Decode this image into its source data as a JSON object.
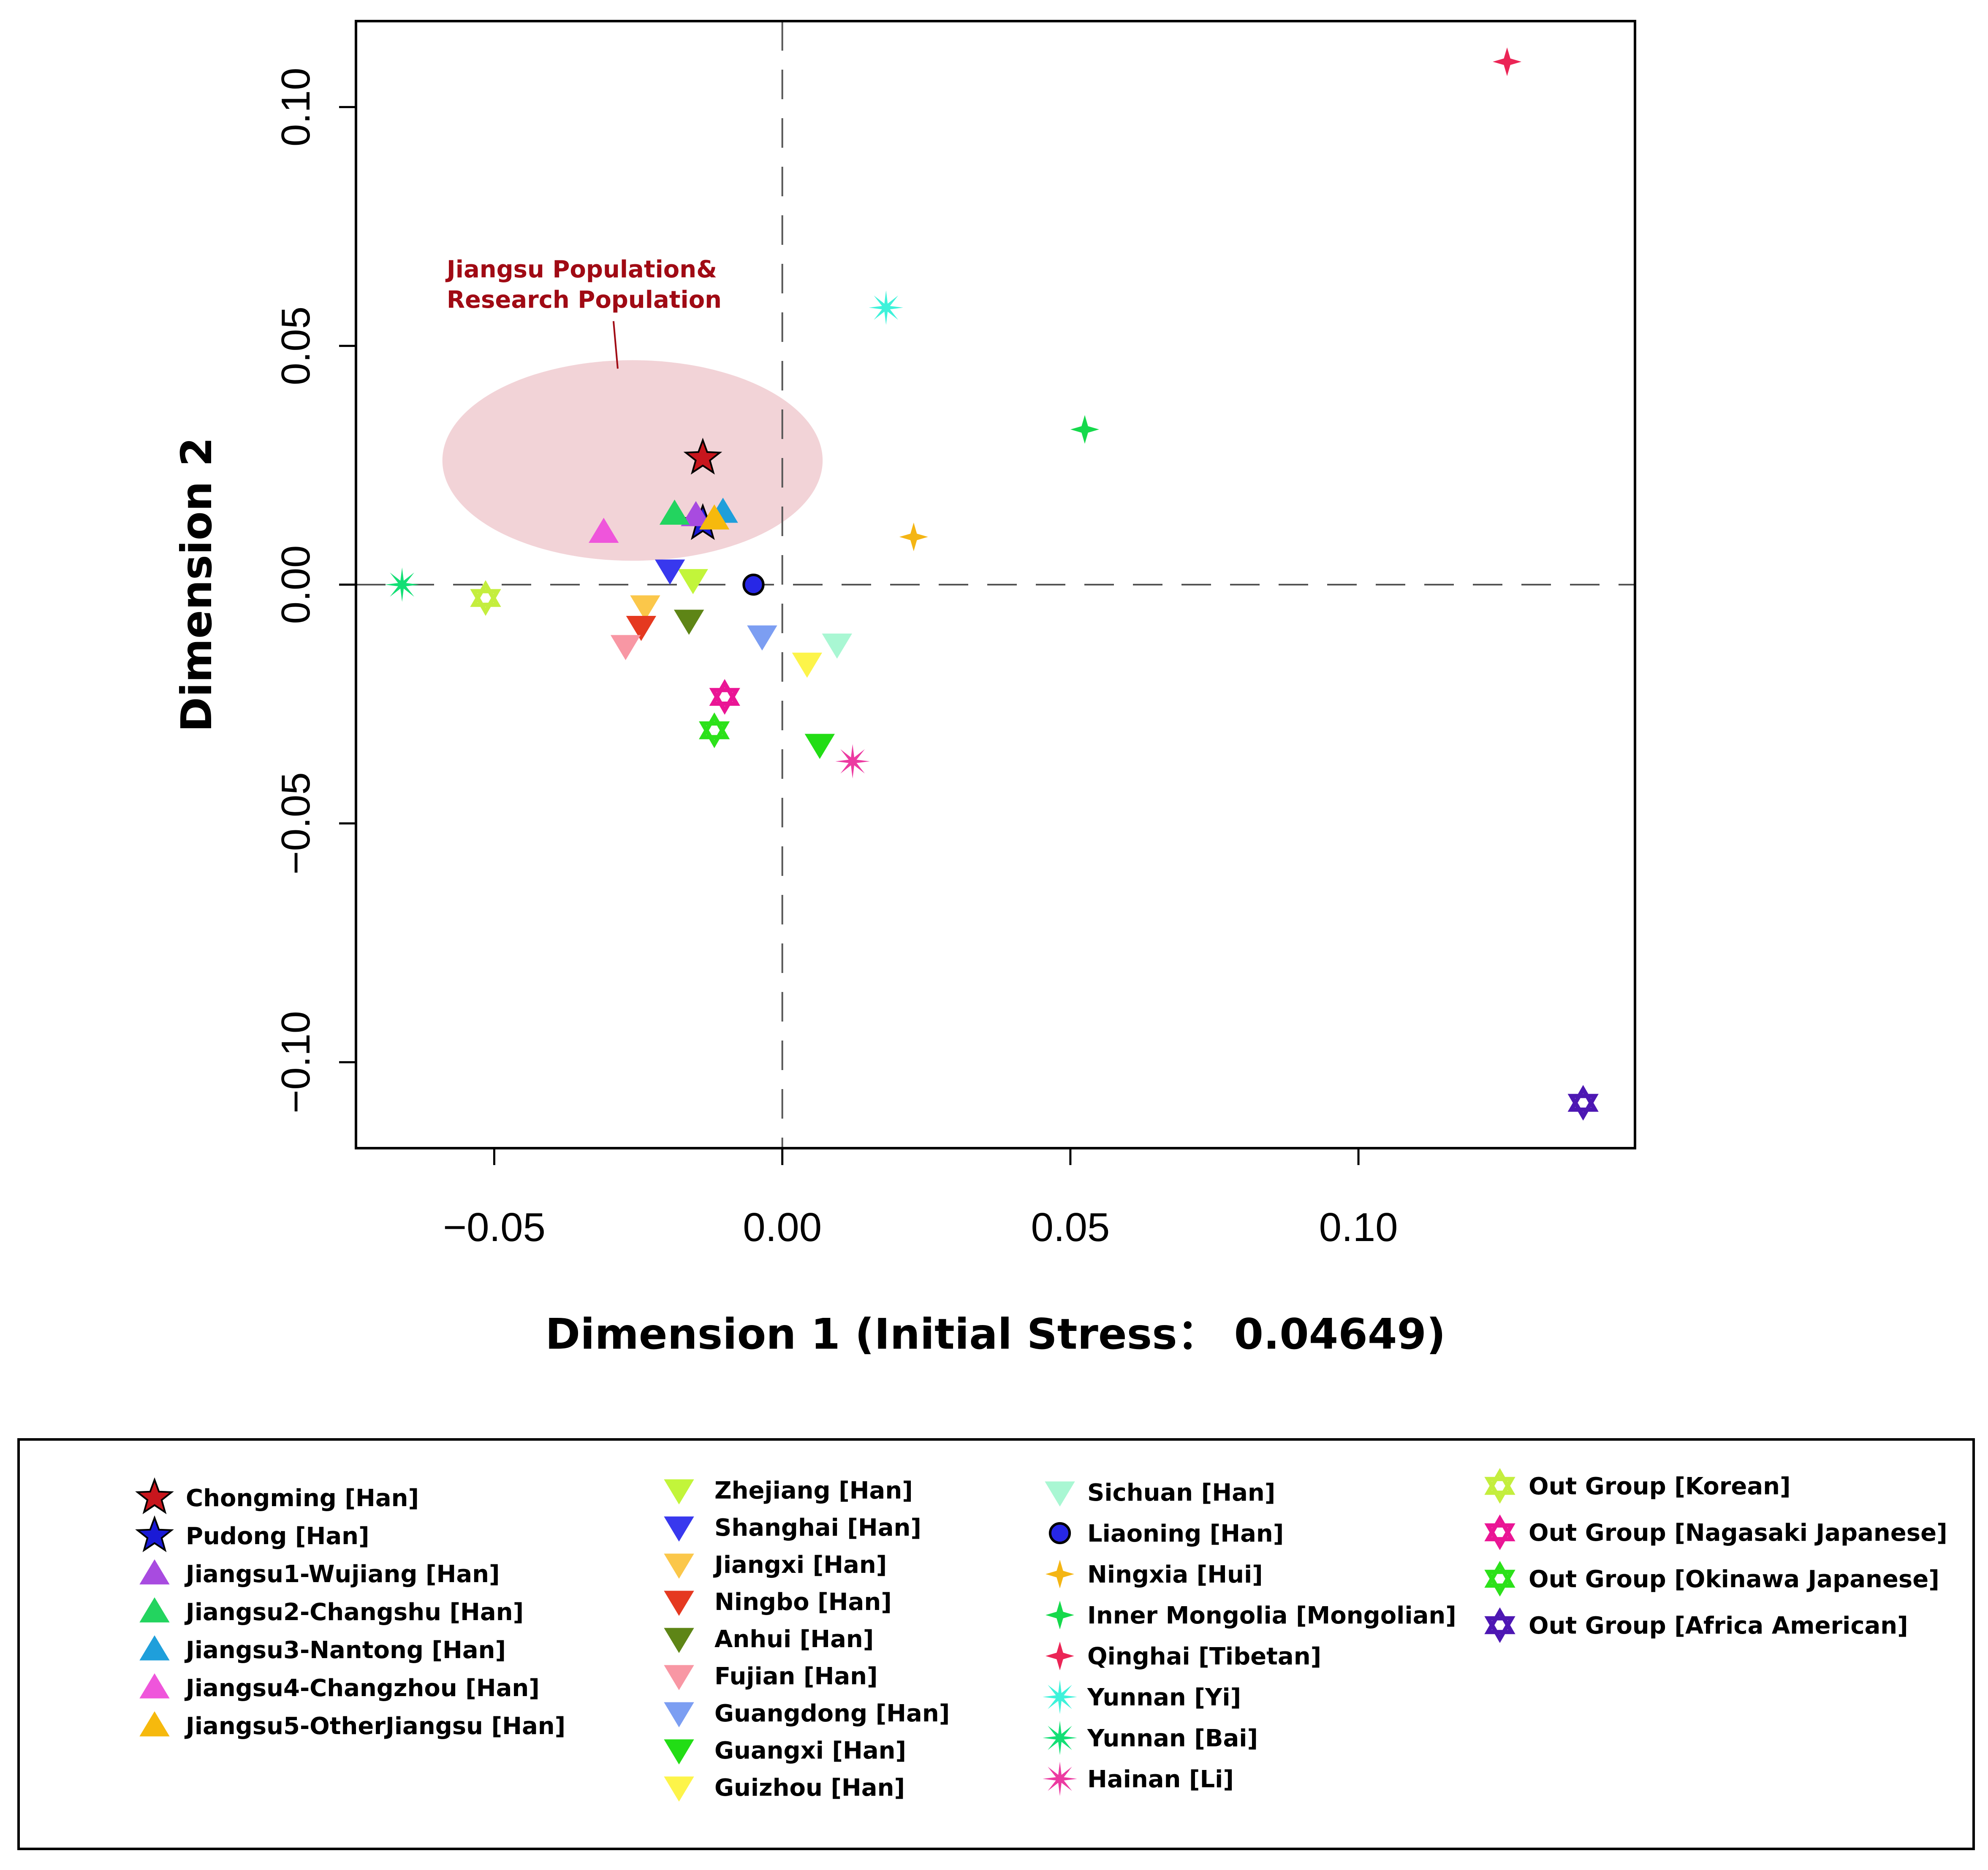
{
  "chart_data": {
    "type": "scatter",
    "title": "",
    "xlabel": "Dimension 1 (Initial Stress： 0.04649)",
    "ylabel": "Dimension 2",
    "xlim": [
      -0.074,
      0.148
    ],
    "ylim": [
      -0.118,
      0.118
    ],
    "x_ticks": [
      -0.05,
      0.0,
      0.05,
      0.1
    ],
    "x_tick_labels": [
      "−0.05",
      "0.00",
      "0.05",
      "0.10"
    ],
    "y_ticks": [
      -0.1,
      -0.05,
      0.0,
      0.05,
      0.1
    ],
    "y_tick_labels": [
      "−0.10",
      "−0.05",
      "0.00",
      "0.05",
      "0.10"
    ],
    "reference_lines": [
      {
        "axis": "x",
        "value": 0
      },
      {
        "axis": "y",
        "value": 0
      }
    ],
    "annotation": {
      "lines": [
        "Jiangsu Population&",
        "Research Population"
      ],
      "ellipse_center": [
        -0.026,
        0.026
      ],
      "ellipse_radius": [
        0.033,
        0.021
      ],
      "color": "#f2d3d7"
    },
    "series": [
      {
        "name": "Chongming [Han]",
        "x": -0.0138,
        "y": 0.0265,
        "marker": "star",
        "color": "#c8161d",
        "legend_col": 0
      },
      {
        "name": "Pudong [Han]",
        "x": -0.0138,
        "y": 0.0128,
        "marker": "star",
        "color": "#1a1ad6",
        "legend_col": 0
      },
      {
        "name": "Jiangsu1-Wujiang [Han]",
        "x": -0.015,
        "y": 0.0145,
        "marker": "triangle-up",
        "color": "#a84be0",
        "legend_col": 0
      },
      {
        "name": "Jiangsu2-Changshu [Han]",
        "x": -0.0187,
        "y": 0.0148,
        "marker": "triangle-up",
        "color": "#23d45f",
        "legend_col": 0
      },
      {
        "name": "Jiangsu3-Nantong [Han]",
        "x": -0.0103,
        "y": 0.0152,
        "marker": "triangle-up",
        "color": "#1f9fdb",
        "legend_col": 0
      },
      {
        "name": "Jiangsu4-Changzhou [Han]",
        "x": -0.031,
        "y": 0.011,
        "marker": "triangle-up",
        "color": "#ef55db",
        "legend_col": 0
      },
      {
        "name": "Jiangsu5-OtherJiangsu [Han]",
        "x": -0.0118,
        "y": 0.0138,
        "marker": "triangle-up",
        "color": "#f6b90d",
        "legend_col": 0
      },
      {
        "name": "Zhejiang [Han]",
        "x": -0.0155,
        "y": 0.001,
        "marker": "triangle-down",
        "color": "#c2f53a",
        "legend_col": 1
      },
      {
        "name": "Shanghai [Han]",
        "x": -0.0195,
        "y": 0.003,
        "marker": "triangle-down",
        "color": "#3838ee",
        "legend_col": 1
      },
      {
        "name": "Jiangxi [Han]",
        "x": -0.0238,
        "y": -0.0045,
        "marker": "triangle-down",
        "color": "#fbc74a",
        "legend_col": 1
      },
      {
        "name": "Ningbo [Han]",
        "x": -0.0245,
        "y": -0.0088,
        "marker": "triangle-down",
        "color": "#e53920",
        "legend_col": 1
      },
      {
        "name": "Anhui [Han]",
        "x": -0.0162,
        "y": -0.0075,
        "marker": "triangle-down",
        "color": "#5e8516",
        "legend_col": 1
      },
      {
        "name": "Fujian [Han]",
        "x": -0.0272,
        "y": -0.0128,
        "marker": "triangle-down",
        "color": "#f897a4",
        "legend_col": 1
      },
      {
        "name": "Guangdong [Han]",
        "x": -0.0035,
        "y": -0.0108,
        "marker": "triangle-down",
        "color": "#7c9ef2",
        "legend_col": 1
      },
      {
        "name": "Guangxi [Han]",
        "x": 0.0065,
        "y": -0.0335,
        "marker": "triangle-down",
        "color": "#22dd15",
        "legend_col": 1
      },
      {
        "name": "Guizhou [Han]",
        "x": 0.0043,
        "y": -0.0165,
        "marker": "triangle-down",
        "color": "#fdf44a",
        "legend_col": 1
      },
      {
        "name": "Sichuan [Han]",
        "x": 0.0095,
        "y": -0.0125,
        "marker": "triangle-down",
        "color": "#a9f7d3",
        "legend_col": 2
      },
      {
        "name": "Liaoning [Han]",
        "x": -0.005,
        "y": 0.0,
        "marker": "circle",
        "color": "#2727e6",
        "legend_col": 2
      },
      {
        "name": "Ningxia [Hui]",
        "x": 0.0228,
        "y": 0.01,
        "marker": "diamond4",
        "color": "#f4b514",
        "legend_col": 2
      },
      {
        "name": "Inner Mongolia [Mongolian]",
        "x": 0.0525,
        "y": 0.0325,
        "marker": "diamond4",
        "color": "#16d94c",
        "legend_col": 2
      },
      {
        "name": "Qinghai [Tibetan]",
        "x": 0.1258,
        "y": 0.1095,
        "marker": "diamond4",
        "color": "#eb2556",
        "legend_col": 2
      },
      {
        "name": "Yunnan [Yi]",
        "x": 0.018,
        "y": 0.058,
        "marker": "burst",
        "color": "#3ef2da",
        "legend_col": 2
      },
      {
        "name": "Yunnan [Bai]",
        "x": -0.066,
        "y": 0.0,
        "marker": "burst",
        "color": "#13df75",
        "legend_col": 2
      },
      {
        "name": "Hainan [Li]",
        "x": 0.0122,
        "y": -0.037,
        "marker": "burst",
        "color": "#ec3aa1",
        "legend_col": 2
      },
      {
        "name": "Out Group [Korean]",
        "x": -0.0515,
        "y": -0.0028,
        "marker": "hexagram",
        "color": "#c4ee3e",
        "legend_col": 3
      },
      {
        "name": "Out Group [Nagasaki Japanese]",
        "x": -0.01,
        "y": -0.0235,
        "marker": "hexagram",
        "color": "#ea1595",
        "legend_col": 3
      },
      {
        "name": "Out Group [Okinawa Japanese]",
        "x": -0.0118,
        "y": -0.0305,
        "marker": "hexagram",
        "color": "#2ce11a",
        "legend_col": 3
      },
      {
        "name": "Out Group [Africa American]",
        "x": 0.139,
        "y": -0.1085,
        "marker": "hexagram",
        "color": "#4d17b3",
        "legend_col": 3
      }
    ]
  }
}
